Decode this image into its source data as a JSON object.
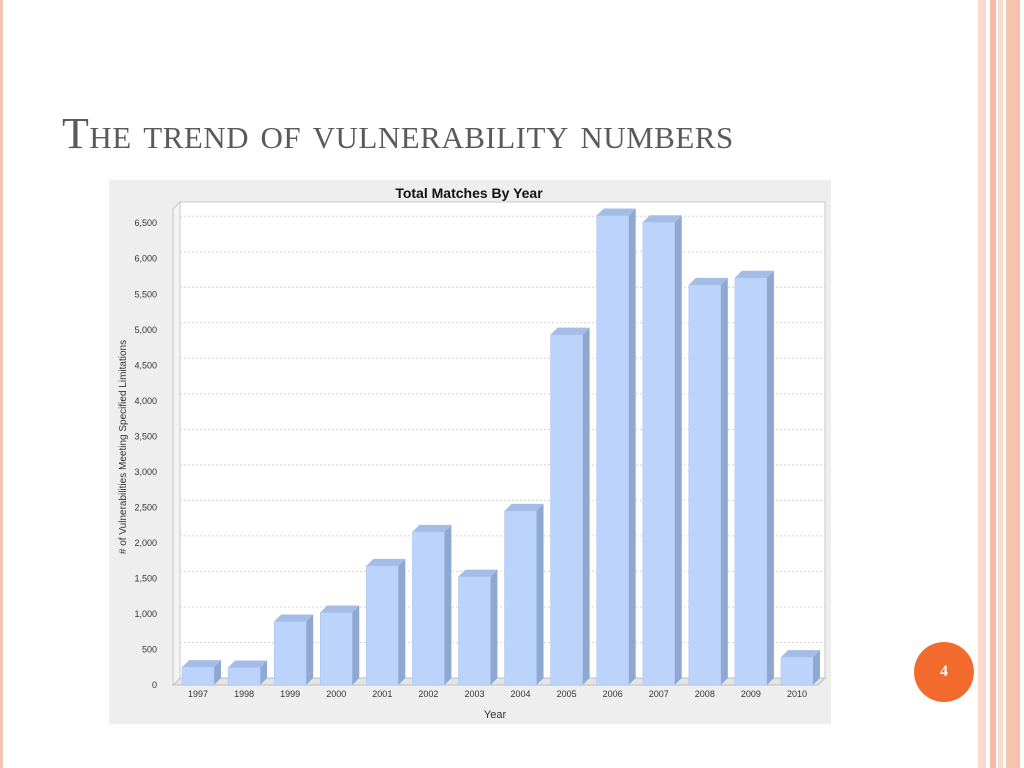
{
  "slide": {
    "title": "The trend of vulnerability numbers",
    "page_number": "4",
    "colors": {
      "accent": "#f26a2c",
      "border": "#f3c4b5",
      "bar": "#bcd4fb"
    }
  },
  "chart_data": {
    "type": "bar",
    "title": "Total Matches By Year",
    "xlabel": "Year",
    "ylabel": "# of Vulnerabilities Meeting Specified Limitations",
    "categories": [
      "1997",
      "1998",
      "1999",
      "2000",
      "2001",
      "2002",
      "2003",
      "2004",
      "2005",
      "2006",
      "2007",
      "2008",
      "2009",
      "2010"
    ],
    "values": [
      252,
      246,
      894,
      1020,
      1677,
      2156,
      1526,
      2451,
      4931,
      6608,
      6514,
      5632,
      5733,
      392
    ],
    "ylim": [
      0,
      6700
    ],
    "yticks": [
      0,
      500,
      1000,
      1500,
      2000,
      2500,
      3000,
      3500,
      4000,
      4500,
      5000,
      5500,
      6000,
      6500
    ],
    "ytick_labels": [
      "0",
      "500",
      "1,000",
      "1,500",
      "2,000",
      "2,500",
      "3,000",
      "3,500",
      "4,000",
      "4,500",
      "5,000",
      "5,500",
      "6,000",
      "6,500"
    ],
    "grid": true,
    "legend": "none",
    "bar_color": "#bcd4fb"
  }
}
